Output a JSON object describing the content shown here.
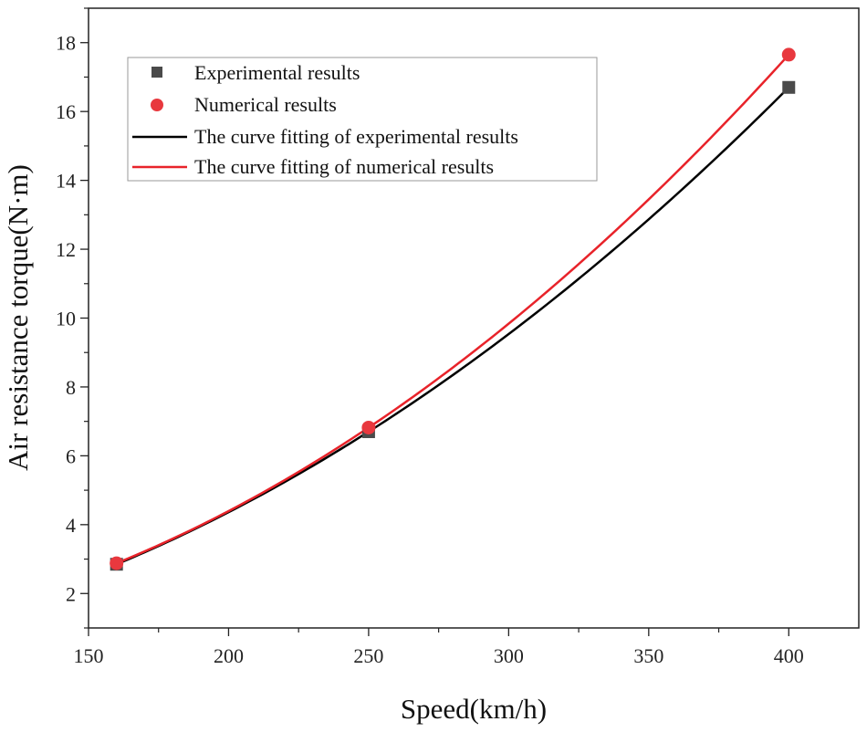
{
  "chart_data": {
    "type": "scatter",
    "title": "",
    "xlabel": "Speed(km/h)",
    "ylabel": "Air resistance torque(N·m)",
    "xlim": [
      150,
      425
    ],
    "ylim": [
      1,
      19
    ],
    "xticks": [
      150,
      200,
      250,
      300,
      350,
      400
    ],
    "yticks": [
      2,
      4,
      6,
      8,
      10,
      12,
      14,
      16,
      18
    ],
    "legend_position": "top-left",
    "series": [
      {
        "name": "Experimental results",
        "kind": "points",
        "marker": "square",
        "color": "#4a4a4a",
        "x": [
          160,
          250,
          400
        ],
        "y": [
          2.85,
          6.7,
          16.7
        ]
      },
      {
        "name": "Numerical results",
        "kind": "points",
        "marker": "circle",
        "color": "#e8383e",
        "x": [
          160,
          250,
          400
        ],
        "y": [
          2.88,
          6.82,
          17.65
        ]
      },
      {
        "name": "The curve fitting of experimental results",
        "kind": "fit",
        "color": "#000000",
        "x": [
          160,
          250,
          400
        ],
        "y": [
          2.85,
          6.7,
          16.7
        ]
      },
      {
        "name": "The curve fitting of numerical results",
        "kind": "fit",
        "color": "#e8232a",
        "x": [
          160,
          250,
          400
        ],
        "y": [
          2.88,
          6.82,
          17.65
        ]
      }
    ]
  }
}
